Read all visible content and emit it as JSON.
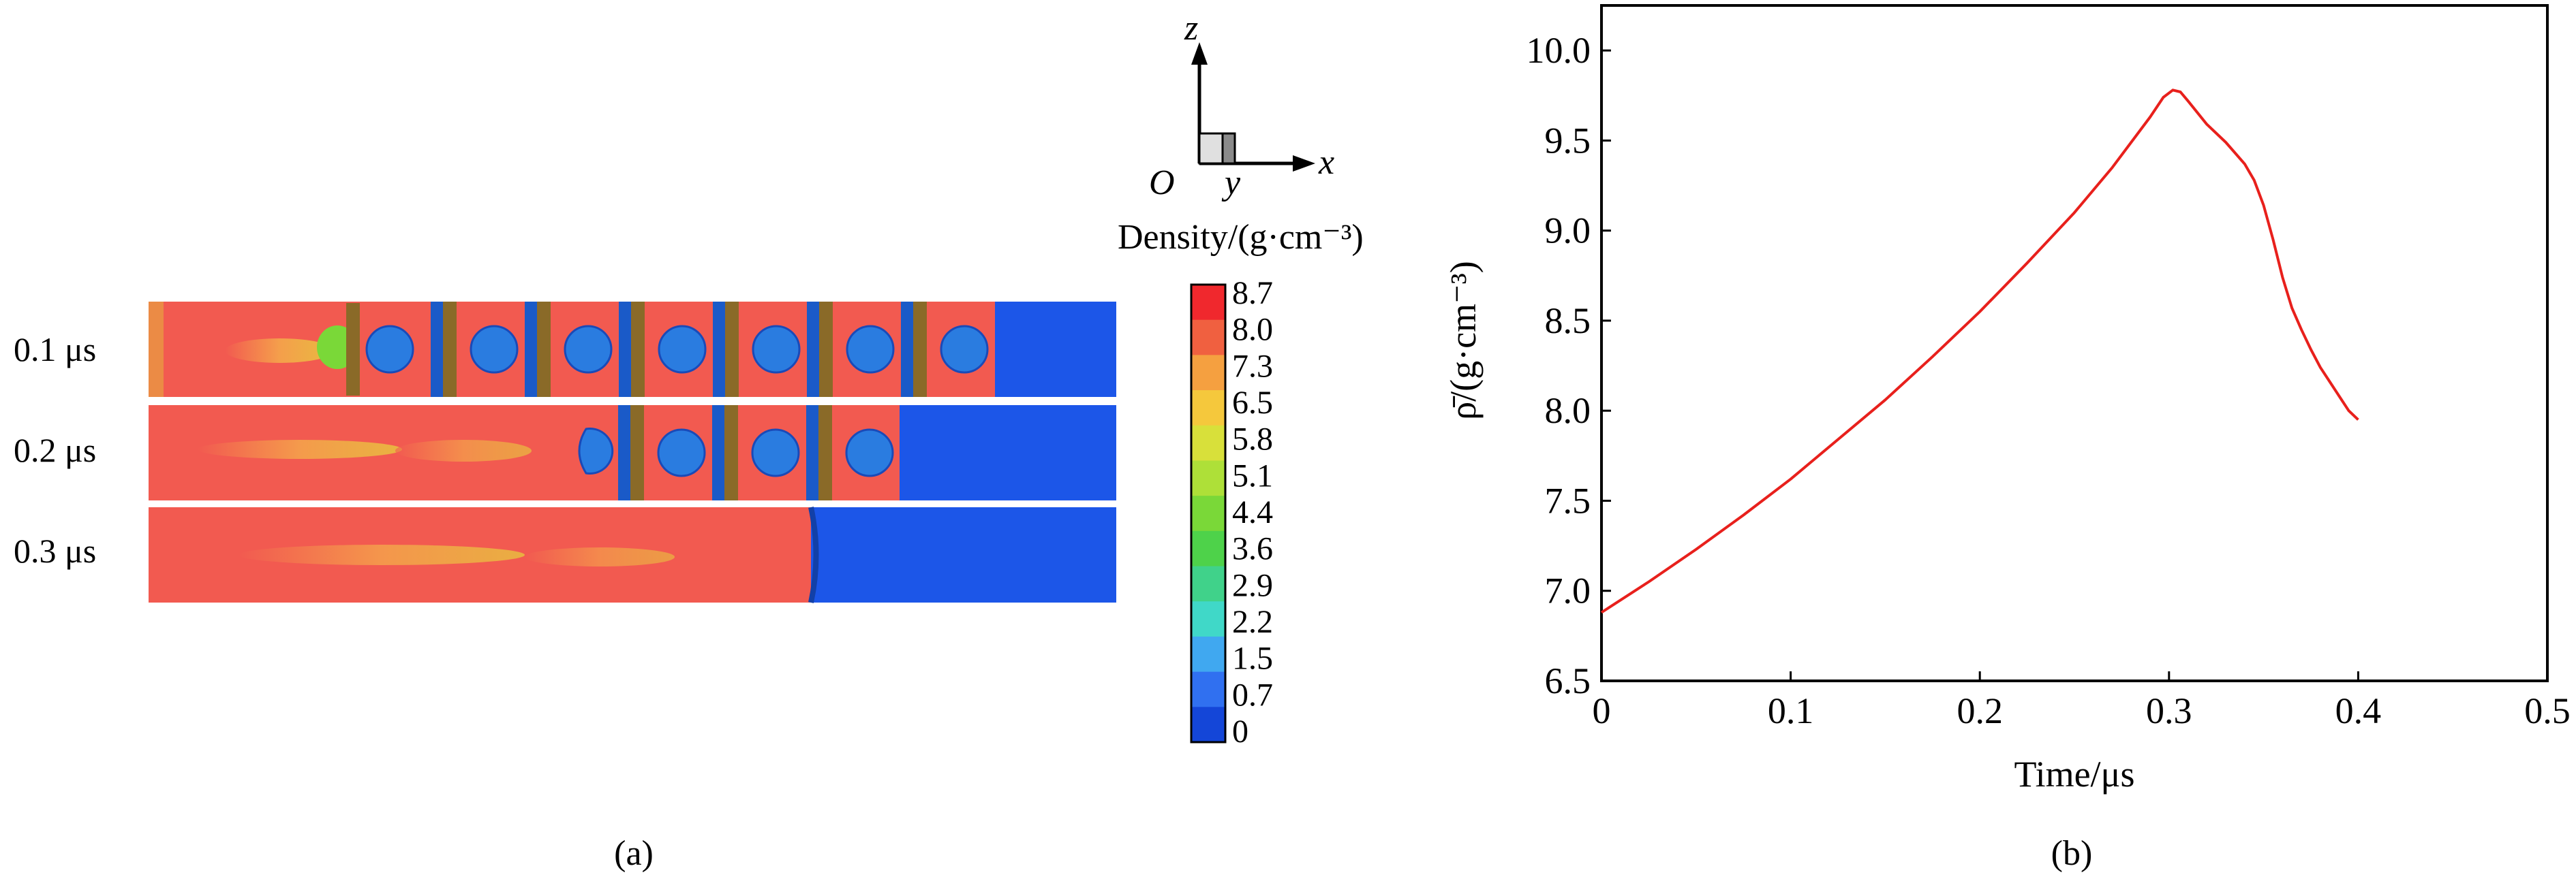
{
  "panel_a": {
    "time_labels": [
      "0.1 μs",
      "0.2 μs",
      "0.3 μs"
    ],
    "axes": {
      "z": "z",
      "x": "x",
      "y": "y",
      "origin": "O"
    },
    "colorbar": {
      "title": "Density/(g·cm⁻³)",
      "ticks": [
        "8.7",
        "8.0",
        "7.3",
        "6.5",
        "5.8",
        "5.1",
        "4.4",
        "3.6",
        "2.9",
        "2.2",
        "1.5",
        "0.7",
        "0"
      ],
      "colors": [
        "#f0282d",
        "#f06040",
        "#f5a040",
        "#f5c83c",
        "#d8e03a",
        "#aee038",
        "#7ad838",
        "#4ed24a",
        "#40d28a",
        "#40d8c8",
        "#40a8f0",
        "#3070f0",
        "#1446d8"
      ]
    },
    "caption": "(a)",
    "colors": {
      "background": "#f25a50",
      "void": "#1c56e8",
      "particle": "#2a7ce0",
      "plate_blue": "#1a5ac8",
      "plate_olive": "#8a6a28"
    }
  },
  "chart_data": {
    "type": "line",
    "xlabel": "Time/μs",
    "ylabel": "ρ̄/(g·cm⁻³)",
    "xlim": [
      0,
      0.5
    ],
    "ylim": [
      6.5,
      10.25
    ],
    "xticks": [
      "0",
      "0.1",
      "0.2",
      "0.3",
      "0.4",
      "0.5"
    ],
    "yticks": [
      "6.5",
      "7.0",
      "7.5",
      "8.0",
      "8.5",
      "9.0",
      "9.5",
      "10.0"
    ],
    "series": [
      {
        "color": "#e8201c",
        "x": [
          0,
          0.025,
          0.05,
          0.075,
          0.1,
          0.125,
          0.15,
          0.175,
          0.2,
          0.225,
          0.25,
          0.27,
          0.29,
          0.297,
          0.302,
          0.306,
          0.31,
          0.32,
          0.33,
          0.34,
          0.345,
          0.35,
          0.355,
          0.36,
          0.365,
          0.37,
          0.375,
          0.38,
          0.385,
          0.39,
          0.395,
          0.4
        ],
        "y": [
          6.88,
          7.05,
          7.23,
          7.42,
          7.62,
          7.84,
          8.06,
          8.3,
          8.55,
          8.82,
          9.1,
          9.35,
          9.63,
          9.74,
          9.78,
          9.77,
          9.72,
          9.59,
          9.49,
          9.37,
          9.28,
          9.14,
          8.95,
          8.74,
          8.57,
          8.45,
          8.34,
          8.24,
          8.16,
          8.08,
          8.0,
          7.95
        ]
      }
    ],
    "caption": "(b)"
  }
}
